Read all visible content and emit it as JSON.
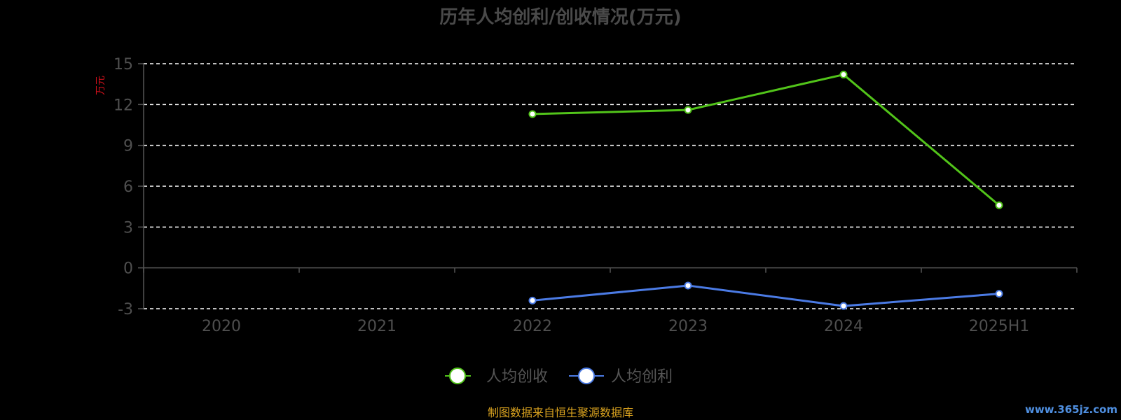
{
  "chart_data": {
    "type": "line",
    "title": "历年人均创利/创收情况(万元)",
    "ylabel": "万元",
    "categories": [
      "2020",
      "2021",
      "2022",
      "2023",
      "2024",
      "2025H1"
    ],
    "ylim": [
      -3,
      15
    ],
    "yticks": [
      15,
      12,
      9,
      6,
      3,
      0,
      -3
    ],
    "grid": true,
    "legend_position": "bottom-center",
    "series": [
      {
        "name": "人均创收",
        "color": "#52c41a",
        "values": [
          null,
          null,
          11.3,
          11.6,
          14.2,
          4.6
        ]
      },
      {
        "name": "人均创利",
        "color": "#4b7be5",
        "values": [
          null,
          null,
          -2.4,
          -1.3,
          -2.8,
          -1.9
        ]
      }
    ]
  },
  "source_note": "制图数据来自恒生聚源数据库",
  "watermark": "www.365jz.com"
}
